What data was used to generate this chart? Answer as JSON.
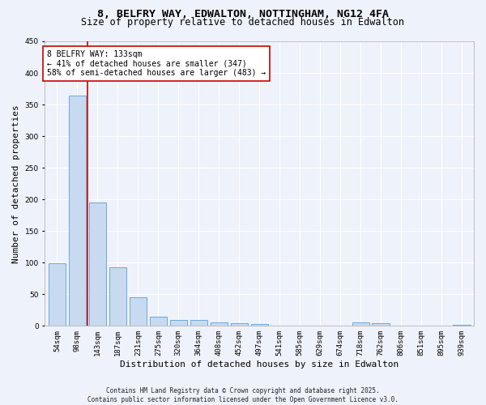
{
  "title1": "8, BELFRY WAY, EDWALTON, NOTTINGHAM, NG12 4FA",
  "title2": "Size of property relative to detached houses in Edwalton",
  "xlabel": "Distribution of detached houses by size in Edwalton",
  "ylabel": "Number of detached properties",
  "categories": [
    "54sqm",
    "98sqm",
    "143sqm",
    "187sqm",
    "231sqm",
    "275sqm",
    "320sqm",
    "364sqm",
    "408sqm",
    "452sqm",
    "497sqm",
    "541sqm",
    "585sqm",
    "629sqm",
    "674sqm",
    "718sqm",
    "762sqm",
    "806sqm",
    "851sqm",
    "895sqm",
    "939sqm"
  ],
  "values": [
    99,
    364,
    195,
    93,
    45,
    15,
    10,
    9,
    5,
    4,
    3,
    1,
    1,
    1,
    0,
    5,
    4,
    1,
    0,
    1,
    2
  ],
  "bar_color": "#c8daf0",
  "bar_edge_color": "#5a9fd4",
  "vline_color": "#cc0000",
  "ylim": [
    0,
    450
  ],
  "yticks": [
    0,
    50,
    100,
    150,
    200,
    250,
    300,
    350,
    400,
    450
  ],
  "annotation_text": "8 BELFRY WAY: 133sqm\n← 41% of detached houses are smaller (347)\n58% of semi-detached houses are larger (483) →",
  "annotation_box_color": "#ffffff",
  "annotation_box_edge_color": "#cc0000",
  "footer_line1": "Contains HM Land Registry data © Crown copyright and database right 2025.",
  "footer_line2": "Contains public sector information licensed under the Open Government Licence v3.0.",
  "background_color": "#eef2fa",
  "grid_color": "#ffffff",
  "title1_fontsize": 9.5,
  "title2_fontsize": 8.5,
  "tick_fontsize": 6.5,
  "ylabel_fontsize": 8,
  "xlabel_fontsize": 8,
  "annotation_fontsize": 7,
  "footer_fontsize": 5.5
}
